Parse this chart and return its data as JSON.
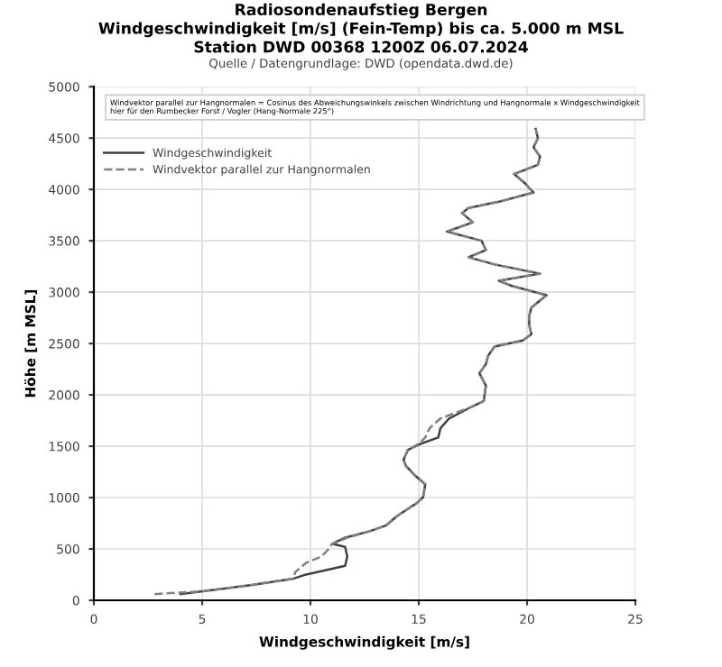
{
  "chart_data": {
    "type": "line",
    "title": "Radiosondenaufstieg Bergen\nWindgeschwindigkeit [m/s] (Fein-Temp) bis ca. 5.000 m MSL\nStation DWD 00368 1200Z 06.07.2024",
    "subtitle": "Quelle / Datengrundlage: DWD (opendata.dwd.de)",
    "xlabel": "Windgeschwindigkeit [m/s]",
    "ylabel": "Höhe [m MSL]",
    "annotations": [
      "Windvektor parallel zur Hangnormalen = Cosinus des Abweichungswinkels zwischen Windrichtung und Hangnormale x Windgeschwindigkeit\nhier für den Rumbecker Forst / Vogler (Hang-Normale 225°)"
    ],
    "xlim": [
      0,
      25
    ],
    "xticks": [
      0,
      5,
      10,
      15,
      20,
      25
    ],
    "ylim": [
      0,
      5000
    ],
    "yticks": [
      0,
      500,
      1000,
      1500,
      2000,
      2500,
      3000,
      3500,
      4000,
      4500,
      5000
    ],
    "grid": true,
    "legend": "top left",
    "marker": "none",
    "series": [
      {
        "name": "Windgeschwindigkeit",
        "color": "#404040",
        "line_style": "solid",
        "x": [
          4.0,
          5.1,
          7.3,
          9.2,
          9.7,
          11.6,
          11.7,
          11.6,
          11.0,
          11.6,
          12.7,
          13.5,
          14.0,
          14.9,
          15.2,
          15.3,
          14.8,
          14.4,
          14.3,
          14.5,
          15.1,
          15.9,
          16.0,
          16.4,
          17.4,
          18.0,
          18.1,
          17.8,
          18.1,
          18.2,
          18.5,
          19.8,
          20.2,
          20.1,
          20.1,
          20.2,
          20.9,
          19.3,
          18.7,
          20.6,
          18.5,
          17.3,
          18.1,
          17.9,
          16.3,
          17.5,
          17.0,
          17.3,
          18.7,
          20.3,
          19.9,
          19.4,
          20.5,
          20.6,
          20.3,
          20.5,
          20.4
        ],
        "values": [
          60,
          90,
          150,
          210,
          245,
          335,
          425,
          520,
          550,
          610,
          670,
          730,
          820,
          945,
          1005,
          1130,
          1220,
          1310,
          1370,
          1465,
          1525,
          1585,
          1675,
          1770,
          1880,
          1940,
          2090,
          2210,
          2300,
          2380,
          2470,
          2530,
          2590,
          2680,
          2770,
          2850,
          2970,
          3060,
          3110,
          3180,
          3270,
          3340,
          3410,
          3500,
          3590,
          3680,
          3770,
          3820,
          3880,
          3970,
          4060,
          4150,
          4240,
          4320,
          4410,
          4500,
          4590
        ]
      },
      {
        "name": "Windvektor parallel zur Hangnormalen",
        "color": "#808080",
        "line_style": "dashed",
        "x": [
          2.8,
          5.1,
          7.3,
          9.2,
          9.3,
          9.8,
          10.5,
          10.8,
          11.0,
          11.7,
          12.7,
          13.5,
          14.0,
          14.9,
          15.2,
          15.3,
          14.8,
          14.4,
          14.3,
          14.5,
          15.0,
          15.3,
          15.5,
          16.0,
          17.4,
          18.0,
          18.1,
          17.8,
          18.1,
          18.2,
          18.5,
          19.8,
          20.2,
          20.1,
          20.1,
          20.2,
          20.9,
          19.3,
          18.7,
          20.6,
          18.5,
          17.3,
          18.1,
          17.9,
          16.3,
          17.5,
          17.0,
          17.3,
          18.7,
          20.3,
          19.9,
          19.4,
          20.5,
          20.6,
          20.3,
          20.5,
          20.4
        ],
        "values": [
          60,
          90,
          150,
          210,
          275,
          365,
          425,
          490,
          550,
          610,
          670,
          730,
          820,
          945,
          1005,
          1130,
          1220,
          1310,
          1370,
          1465,
          1525,
          1585,
          1675,
          1770,
          1880,
          1940,
          2090,
          2210,
          2300,
          2380,
          2470,
          2530,
          2590,
          2680,
          2770,
          2850,
          2970,
          3060,
          3110,
          3180,
          3270,
          3340,
          3410,
          3500,
          3590,
          3680,
          3770,
          3820,
          3880,
          3970,
          4060,
          4150,
          4240,
          4320,
          4410,
          4500,
          4590
        ]
      }
    ]
  }
}
